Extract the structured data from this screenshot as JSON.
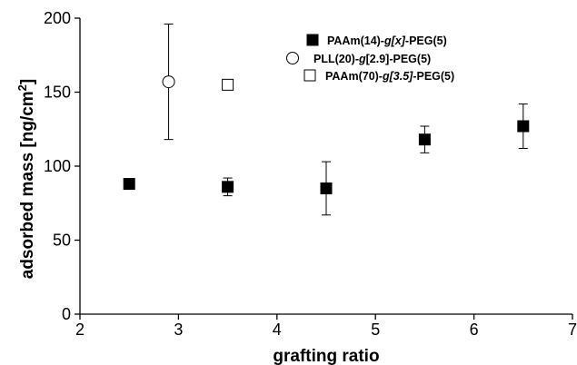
{
  "chart_data": {
    "type": "scatter",
    "xlabel": "grafting ratio",
    "ylabel": "adsorbed mass [ng/cm",
    "ylabel_superscript": "2",
    "ylabel_suffix": "]",
    "xlim": [
      2,
      7
    ],
    "ylim": [
      0,
      200
    ],
    "x_ticks": [
      2,
      3,
      4,
      5,
      6,
      7
    ],
    "y_ticks": [
      0,
      50,
      100,
      150,
      200
    ],
    "grid": false,
    "legend_position": "top-right",
    "series": [
      {
        "name": "PAAm(14)-g[x]-PEG(5)",
        "name_parts": [
          {
            "text": "PAAm(14)-",
            "italic": false
          },
          {
            "text": "g[x]",
            "italic": true
          },
          {
            "text": "-PEG(5)",
            "italic": false
          }
        ],
        "marker": "filled-square",
        "points": [
          {
            "x": 2.5,
            "y": 88,
            "err": 0
          },
          {
            "x": 3.5,
            "y": 86,
            "err": 6
          },
          {
            "x": 4.5,
            "y": 85,
            "err": 18
          },
          {
            "x": 5.5,
            "y": 118,
            "err": 9
          },
          {
            "x": 6.5,
            "y": 127,
            "err": 15
          }
        ]
      },
      {
        "name": "PLL(20)-g[2.9]-PEG(5)",
        "name_parts": [
          {
            "text": "PLL(20)-",
            "italic": false
          },
          {
            "text": "g",
            "italic": true
          },
          {
            "text": "[2.9]-PEG(5)",
            "italic": false
          }
        ],
        "marker": "open-circle",
        "points": [
          {
            "x": 2.9,
            "y": 157,
            "err": 39
          }
        ]
      },
      {
        "name": "PAAm(70)-g[3.5]-PEG(5)",
        "name_parts": [
          {
            "text": "PAAm(70)-",
            "italic": false
          },
          {
            "text": "g[3.5]",
            "italic": true
          },
          {
            "text": "-PEG(5)",
            "italic": false
          }
        ],
        "marker": "open-square",
        "points": [
          {
            "x": 3.5,
            "y": 155,
            "err": 3
          }
        ]
      }
    ]
  }
}
